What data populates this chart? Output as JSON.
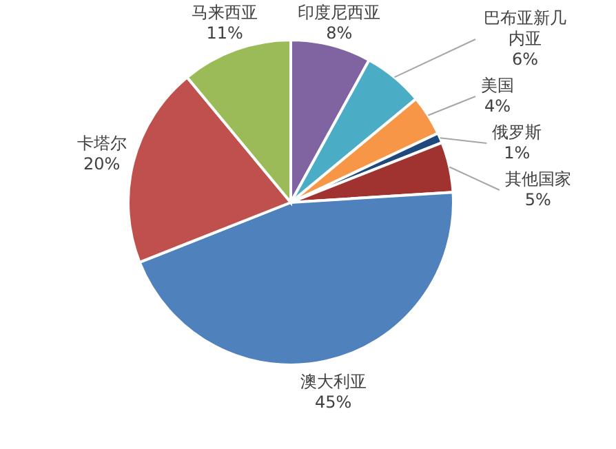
{
  "chart_data": {
    "type": "pie",
    "categories": [
      "印度尼西亚",
      "巴布亚新几内亚",
      "美国",
      "俄罗斯",
      "其他国家",
      "澳大利亚",
      "卡塔尔",
      "马来西亚"
    ],
    "values": [
      8,
      6,
      4,
      1,
      5,
      45,
      20,
      11
    ],
    "colors": [
      "#8064a2",
      "#4bacc6",
      "#f79646",
      "#1f497d",
      "#a0322f",
      "#4f81bd",
      "#c0504d",
      "#9bbb59"
    ],
    "value_labels": [
      "8%",
      "6%",
      "4%",
      "1%",
      "5%",
      "45%",
      "20%",
      "11%"
    ]
  }
}
